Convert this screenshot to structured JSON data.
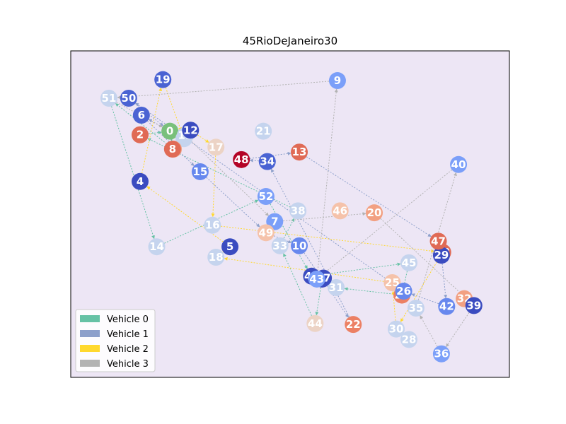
{
  "chart_data": {
    "type": "scatter",
    "title": "45RioDeJaneiro30",
    "xlabel": "",
    "ylabel": "",
    "grid": false,
    "axis_ticks": false,
    "background": "#ede6f5",
    "legend_placement": "lower-left",
    "xlim": [
      0,
      100
    ],
    "ylim": [
      0,
      100
    ],
    "depot": 0,
    "nodes": [
      {
        "id": "0",
        "x": 22.6,
        "y": 75.4,
        "color": "#79c07b"
      },
      {
        "id": "1",
        "x": 25.8,
        "y": 73.1,
        "color": "#c5d4ee"
      },
      {
        "id": "2",
        "x": 15.8,
        "y": 74.3,
        "color": "#e06a55"
      },
      {
        "id": "3",
        "x": 23.4,
        "y": 69.9,
        "color": "#eea689"
      },
      {
        "id": "4",
        "x": 15.8,
        "y": 60.0,
        "color": "#3b4cc0"
      },
      {
        "id": "5",
        "x": 36.3,
        "y": 40.0,
        "color": "#3b4cc0"
      },
      {
        "id": "6",
        "x": 16.1,
        "y": 80.3,
        "color": "#4a63d3"
      },
      {
        "id": "7",
        "x": 46.5,
        "y": 47.7,
        "color": "#7b9ff9"
      },
      {
        "id": "8",
        "x": 23.2,
        "y": 69.9,
        "color": "#e06a55"
      },
      {
        "id": "9",
        "x": 60.8,
        "y": 90.9,
        "color": "#7b9ff9"
      },
      {
        "id": "10",
        "x": 52.1,
        "y": 40.3,
        "color": "#6788ee"
      },
      {
        "id": "11",
        "x": 26.1,
        "y": 74.1,
        "color": "#c5d4ee"
      },
      {
        "id": "12",
        "x": 27.3,
        "y": 75.7,
        "color": "#3b4cc0"
      },
      {
        "id": "13",
        "x": 52.1,
        "y": 69.0,
        "color": "#e06a55"
      },
      {
        "id": "14",
        "x": 19.6,
        "y": 40.0,
        "color": "#c5d4ee"
      },
      {
        "id": "15",
        "x": 29.5,
        "y": 63.0,
        "color": "#6788ee"
      },
      {
        "id": "16",
        "x": 32.3,
        "y": 46.6,
        "color": "#c5d4ee"
      },
      {
        "id": "17",
        "x": 33.1,
        "y": 70.5,
        "color": "#ecd3c5"
      },
      {
        "id": "18",
        "x": 33.1,
        "y": 36.8,
        "color": "#c5d4ee"
      },
      {
        "id": "19",
        "x": 21.0,
        "y": 91.2,
        "color": "#4a63d3"
      },
      {
        "id": "20",
        "x": 69.2,
        "y": 50.4,
        "color": "#f2a082"
      },
      {
        "id": "21",
        "x": 43.9,
        "y": 75.4,
        "color": "#c5d4ee"
      },
      {
        "id": "22",
        "x": 64.4,
        "y": 16.2,
        "color": "#ec8064"
      },
      {
        "id": "23",
        "x": 84.8,
        "y": 38.3,
        "color": "#e06a55"
      },
      {
        "id": "24",
        "x": 75.5,
        "y": 25.2,
        "color": "#ec8064"
      },
      {
        "id": "25",
        "x": 73.3,
        "y": 29.0,
        "color": "#f5c2aa"
      },
      {
        "id": "26",
        "x": 75.9,
        "y": 26.4,
        "color": "#6788ee"
      },
      {
        "id": "27",
        "x": 57.3,
        "y": 30.1,
        "color": "#3b4cc0"
      },
      {
        "id": "28",
        "x": 77.1,
        "y": 11.6,
        "color": "#c5d4ee"
      },
      {
        "id": "29",
        "x": 84.5,
        "y": 37.4,
        "color": "#3b4cc0"
      },
      {
        "id": "30",
        "x": 74.2,
        "y": 14.8,
        "color": "#c5d4ee"
      },
      {
        "id": "31",
        "x": 60.5,
        "y": 27.5,
        "color": "#c5d4ee"
      },
      {
        "id": "32",
        "x": 89.7,
        "y": 24.1,
        "color": "#f2a082"
      },
      {
        "id": "33",
        "x": 47.7,
        "y": 40.3,
        "color": "#c5d4ee"
      },
      {
        "id": "34",
        "x": 44.8,
        "y": 66.1,
        "color": "#4a63d3"
      },
      {
        "id": "35",
        "x": 78.7,
        "y": 21.2,
        "color": "#c5d4ee"
      },
      {
        "id": "36",
        "x": 84.5,
        "y": 7.2,
        "color": "#7b9ff9"
      },
      {
        "id": "37",
        "x": 57.6,
        "y": 30.4,
        "color": "#3b4cc0"
      },
      {
        "id": "38",
        "x": 51.8,
        "y": 51.0,
        "color": "#c5d4ee"
      },
      {
        "id": "39",
        "x": 91.9,
        "y": 22.0,
        "color": "#3b4cc0"
      },
      {
        "id": "40",
        "x": 88.4,
        "y": 65.2,
        "color": "#7b9ff9"
      },
      {
        "id": "41",
        "x": 54.9,
        "y": 31.0,
        "color": "#3b4cc0"
      },
      {
        "id": "42",
        "x": 85.7,
        "y": 21.7,
        "color": "#6788ee"
      },
      {
        "id": "43",
        "x": 56.1,
        "y": 30.1,
        "color": "#7b9ff9"
      },
      {
        "id": "44",
        "x": 55.7,
        "y": 16.5,
        "color": "#ecd3c5"
      },
      {
        "id": "45",
        "x": 77.1,
        "y": 35.1,
        "color": "#c5d4ee"
      },
      {
        "id": "46",
        "x": 61.4,
        "y": 51.0,
        "color": "#f5c2aa"
      },
      {
        "id": "47",
        "x": 83.8,
        "y": 41.7,
        "color": "#e06a55"
      },
      {
        "id": "48",
        "x": 38.9,
        "y": 66.7,
        "color": "#b40426"
      },
      {
        "id": "49",
        "x": 44.5,
        "y": 44.3,
        "color": "#f5c2aa"
      },
      {
        "id": "50",
        "x": 13.2,
        "y": 85.5,
        "color": "#4a63d3"
      },
      {
        "id": "51",
        "x": 8.7,
        "y": 85.5,
        "color": "#c5d4ee"
      },
      {
        "id": "52",
        "x": 44.5,
        "y": 55.4,
        "color": "#7b9ff9"
      }
    ],
    "series": [
      {
        "name": "Vehicle 0",
        "color": "#66c2a5",
        "route": [
          "0",
          "3",
          "51",
          "14",
          "52",
          "41",
          "45",
          "24",
          "31",
          "27",
          "44",
          "33",
          "38",
          "2",
          "0"
        ]
      },
      {
        "name": "Vehicle 1",
        "color": "#8da0cb",
        "route": [
          "0",
          "6",
          "15",
          "49",
          "10",
          "22",
          "34",
          "48",
          "13",
          "47",
          "29",
          "42",
          "26",
          "50",
          "0"
        ]
      },
      {
        "name": "Vehicle 2",
        "color": "#ffd92f",
        "route": [
          "0",
          "12",
          "17",
          "16",
          "23",
          "30",
          "25",
          "18",
          "5",
          "4",
          "19",
          "1",
          "0"
        ]
      },
      {
        "name": "Vehicle 3",
        "color": "#b3b3b3",
        "route": [
          "0",
          "11",
          "7",
          "20",
          "39",
          "36",
          "35",
          "40",
          "43",
          "9",
          "51",
          "0"
        ]
      }
    ],
    "legend": [
      "Vehicle 0",
      "Vehicle 1",
      "Vehicle 2",
      "Vehicle 3"
    ]
  }
}
